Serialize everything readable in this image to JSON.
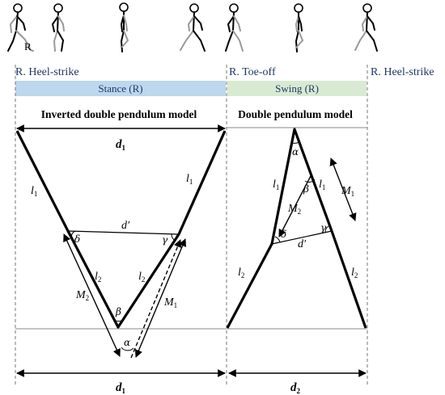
{
  "figure_letter": "R",
  "phases": {
    "heel_strike_1": "R. Heel-strike",
    "toe_off": "R. Toe-off",
    "heel_strike_2": "R. Heel-strike"
  },
  "bars": {
    "stance": "Stance (R)",
    "swing": "Swing (R)",
    "stance_color": "#bdd7ee",
    "swing_color": "#d9ead3"
  },
  "titles": {
    "left": "Inverted double pendulum model",
    "right": "Double pendulum model"
  },
  "labels": {
    "d1": "d",
    "d1_sub": "1",
    "d2": "d",
    "d2_sub": "2",
    "l": "l",
    "sub1": "1",
    "sub2": "2",
    "M": "M",
    "d_prime": "d′",
    "alpha": "α",
    "beta": "β",
    "gamma": "γ",
    "delta": "δ"
  }
}
